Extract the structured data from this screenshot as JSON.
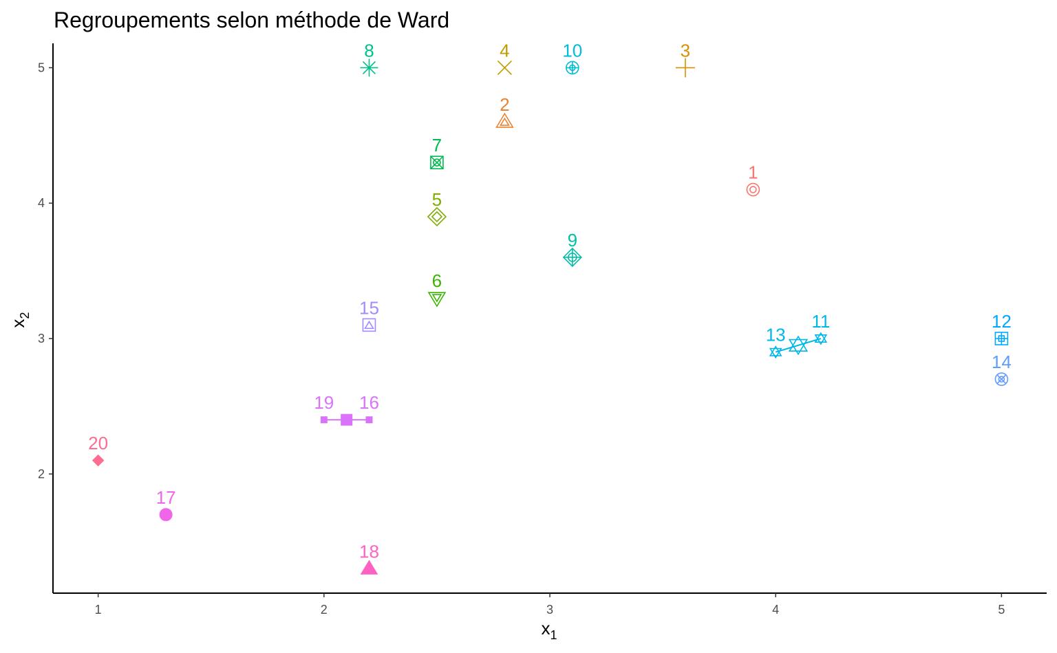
{
  "chart_data": {
    "type": "scatter",
    "title": "Regroupements selon méthode de Ward",
    "xlabel": "x",
    "xlabel_sub": "1",
    "ylabel": "x",
    "ylabel_sub": "2",
    "xlim": [
      0.8,
      5.2
    ],
    "ylim": [
      1.12,
      5.18
    ],
    "x_ticks": [
      1,
      2,
      3,
      4,
      5
    ],
    "y_ticks": [
      2,
      3,
      4,
      5
    ],
    "x_tick_labels": [
      "1",
      "2",
      "3",
      "4",
      "5"
    ],
    "y_tick_labels": [
      "2",
      "3",
      "4",
      "5"
    ],
    "grid": false,
    "points": [
      {
        "label": "1",
        "x": 3.9,
        "y": 4.1,
        "color": "#F8766D",
        "symbol": "circle-dot"
      },
      {
        "label": "2",
        "x": 2.8,
        "y": 4.6,
        "color": "#EA8331",
        "symbol": "triangle-double"
      },
      {
        "label": "3",
        "x": 3.6,
        "y": 5.0,
        "color": "#D89000",
        "symbol": "plus"
      },
      {
        "label": "4",
        "x": 2.8,
        "y": 5.0,
        "color": "#C09B00",
        "symbol": "cross"
      },
      {
        "label": "5",
        "x": 2.5,
        "y": 3.9,
        "color": "#7CAE00",
        "symbol": "diamond-double"
      },
      {
        "label": "6",
        "x": 2.5,
        "y": 3.3,
        "color": "#39B600",
        "symbol": "triangle-down-double"
      },
      {
        "label": "7",
        "x": 2.5,
        "y": 4.3,
        "color": "#00BB4E",
        "symbol": "square-cross"
      },
      {
        "label": "8",
        "x": 2.2,
        "y": 5.0,
        "color": "#00C08B",
        "symbol": "asterisk"
      },
      {
        "label": "9",
        "x": 3.1,
        "y": 3.6,
        "color": "#00BFA7",
        "symbol": "diamond-plus"
      },
      {
        "label": "10",
        "x": 3.1,
        "y": 5.0,
        "color": "#00BBDA",
        "symbol": "circle-plus"
      },
      {
        "label": "11",
        "x": 4.2,
        "y": 3.0,
        "color": "#00B8E7",
        "symbol": "star-david"
      },
      {
        "label": "12",
        "x": 5.0,
        "y": 3.0,
        "color": "#00A9FF",
        "symbol": "square-plus"
      },
      {
        "label": "13",
        "x": 4.0,
        "y": 2.9,
        "color": "#00B8E7",
        "symbol": "star-david"
      },
      {
        "label": "14",
        "x": 5.0,
        "y": 2.7,
        "color": "#619CFF",
        "symbol": "circle-cross"
      },
      {
        "label": "15",
        "x": 2.2,
        "y": 3.1,
        "color": "#A58AFF",
        "symbol": "square-triangle"
      },
      {
        "label": "16",
        "x": 2.2,
        "y": 2.4,
        "color": "#DB72FB",
        "symbol": "square-small"
      },
      {
        "label": "17",
        "x": 1.3,
        "y": 1.7,
        "color": "#F066EA",
        "symbol": "circle-filled"
      },
      {
        "label": "18",
        "x": 2.2,
        "y": 1.3,
        "color": "#FF61C3",
        "symbol": "triangle-filled"
      },
      {
        "label": "19",
        "x": 2.0,
        "y": 2.4,
        "color": "#DB72FB",
        "symbol": "square-small"
      },
      {
        "label": "20",
        "x": 1.0,
        "y": 2.1,
        "color": "#FF6C91",
        "symbol": "diamond-filled"
      }
    ],
    "cluster_means": [
      {
        "members": [
          "16",
          "19"
        ],
        "x": 2.1,
        "y": 2.4,
        "color": "#DB72FB",
        "symbol": "square-filled"
      },
      {
        "members": [
          "11",
          "13"
        ],
        "x": 4.1,
        "y": 2.95,
        "color": "#00B8E7",
        "symbol": "star-david"
      }
    ],
    "merge_segments": [
      {
        "from": "19",
        "to": "16",
        "color": "#DB72FB"
      },
      {
        "from": "13",
        "to": "11",
        "color": "#00B8E7"
      }
    ]
  }
}
